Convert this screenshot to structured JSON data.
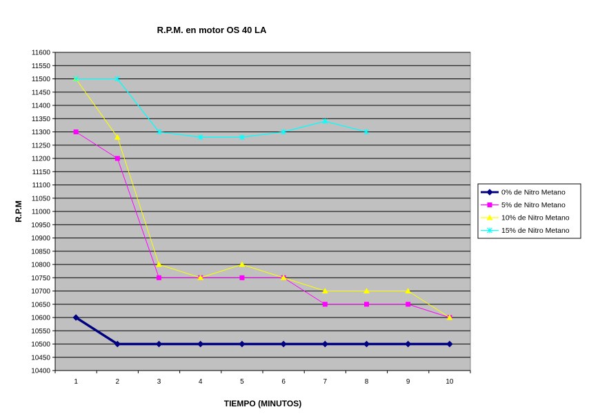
{
  "chart_data": {
    "type": "line",
    "title": "R.P.M. en motor OS 40 LA",
    "xlabel": "TIEMPO (MINUTOS)",
    "ylabel": "R.P.M",
    "categories": [
      "1",
      "2",
      "3",
      "4",
      "5",
      "6",
      "7",
      "8",
      "9",
      "10"
    ],
    "ylim": [
      10400,
      11600
    ],
    "ytick_step": 50,
    "yticks": [
      "10400",
      "10450",
      "10500",
      "10550",
      "10600",
      "10650",
      "10700",
      "10750",
      "10800",
      "10850",
      "10900",
      "10950",
      "11000",
      "11050",
      "11100",
      "11150",
      "11200",
      "11250",
      "11300",
      "11350",
      "11400",
      "11450",
      "11500",
      "11550",
      "11600"
    ],
    "grid": true,
    "plot_background": "#c0c0c0",
    "legend_position": "right",
    "series": [
      {
        "name": "0% de Nitro Metano",
        "color": "#000080",
        "marker": "diamond",
        "values": [
          10600,
          10500,
          10500,
          10500,
          10500,
          10500,
          10500,
          10500,
          10500,
          10500
        ]
      },
      {
        "name": "5% de Nitro Metano",
        "color": "#ff00ff",
        "marker": "square",
        "values": [
          11300,
          11200,
          10750,
          10750,
          10750,
          10750,
          10650,
          10650,
          10650,
          10600
        ]
      },
      {
        "name": "10% de Nitro Metano",
        "color": "#ffff00",
        "marker": "triangle",
        "values": [
          11500,
          11280,
          10800,
          10750,
          10800,
          10750,
          10700,
          10700,
          10700,
          10600
        ]
      },
      {
        "name": "15% de Nitro Metano",
        "color": "#00ffff",
        "marker": "star",
        "values": [
          11500,
          11500,
          11300,
          11280,
          11280,
          11300,
          11340,
          11300,
          null,
          null
        ]
      }
    ]
  }
}
